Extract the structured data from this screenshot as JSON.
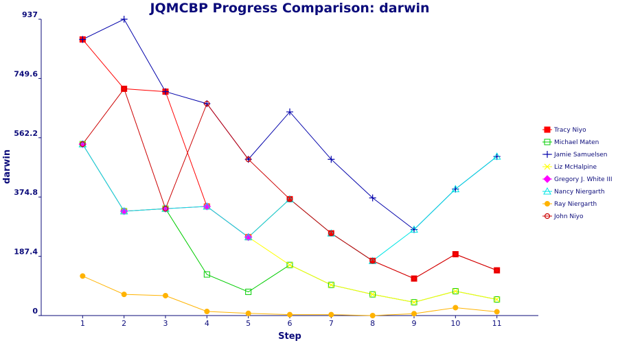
{
  "chart_data": {
    "type": "line",
    "title": "JQMCBP Progress Comparison: darwin",
    "xlabel": "Step",
    "ylabel": "darwin",
    "x": [
      1,
      2,
      3,
      4,
      5,
      6,
      7,
      8,
      9,
      10,
      11
    ],
    "x_tick_labels": [
      "1",
      "2",
      "3",
      "4",
      "5",
      "6",
      "7",
      "8",
      "9",
      "10",
      "11"
    ],
    "xlim": [
      0,
      12
    ],
    "ylim": [
      0,
      937
    ],
    "y_ticks": [
      0,
      187.4,
      374.8,
      562.2,
      749.6,
      937
    ],
    "y_tick_labels": [
      "0",
      "187.4",
      "374.8",
      "562.2",
      "749.6",
      "937"
    ],
    "legend_position": "right",
    "series": [
      {
        "name": "Tracy Niyo",
        "color": "#ff0000",
        "marker": "filled-square",
        "x": [
          1,
          2,
          3,
          4,
          5,
          6,
          7,
          8,
          9,
          10,
          11
        ],
        "values": [
          873,
          717,
          708,
          345,
          248,
          368,
          260,
          173,
          117,
          194,
          143
        ]
      },
      {
        "name": "Michael Maten",
        "color": "#00cc00",
        "marker": "open-square",
        "x": [
          1,
          2,
          3,
          4,
          5,
          6,
          7,
          8,
          9,
          10,
          11
        ],
        "values": [
          542,
          330,
          338,
          130,
          75,
          160,
          97,
          67,
          42,
          77,
          51
        ]
      },
      {
        "name": "Jamie Samuelsen",
        "color": "#0000aa",
        "marker": "plus",
        "x": [
          1,
          2,
          3,
          4,
          5,
          6,
          7,
          8,
          9,
          10,
          11
        ],
        "values": [
          873,
          937,
          708,
          670,
          494,
          644,
          494,
          372,
          272,
          400,
          503
        ]
      },
      {
        "name": "Liz McHalpine",
        "color": "#ffff00",
        "marker": "cross",
        "x": [
          1,
          2,
          3,
          4,
          5,
          6,
          7,
          8,
          9,
          10,
          11
        ],
        "values": [
          542,
          330,
          338,
          345,
          248,
          160,
          97,
          67,
          42,
          77,
          51
        ]
      },
      {
        "name": "Gregory J. White III",
        "color": "#ff00ff",
        "marker": "diamond",
        "x": [
          1,
          2,
          3,
          4,
          5
        ],
        "values": [
          542,
          330,
          338,
          345,
          248
        ]
      },
      {
        "name": "Nancy Niergarth",
        "color": "#00e5e5",
        "marker": "triangle",
        "x": [
          1,
          2,
          3,
          4,
          5,
          6,
          7,
          8,
          9,
          10,
          11
        ],
        "values": [
          542,
          330,
          338,
          345,
          248,
          368,
          260,
          173,
          272,
          400,
          503
        ]
      },
      {
        "name": "Ray Niergarth",
        "color": "#ffb300",
        "marker": "filled-circle",
        "x": [
          1,
          2,
          3,
          4,
          5,
          6,
          7,
          8,
          9,
          10,
          11
        ],
        "values": [
          125,
          67,
          63,
          13,
          7,
          3,
          3,
          0,
          6,
          25,
          12
        ]
      },
      {
        "name": "John Niyo",
        "color": "#cc0000",
        "marker": "open-circle",
        "x": [
          1,
          2,
          3,
          4,
          5,
          6,
          7,
          8,
          9,
          10,
          11
        ],
        "values": [
          542,
          717,
          338,
          670,
          494,
          368,
          260,
          173,
          117,
          194,
          143
        ]
      }
    ]
  }
}
